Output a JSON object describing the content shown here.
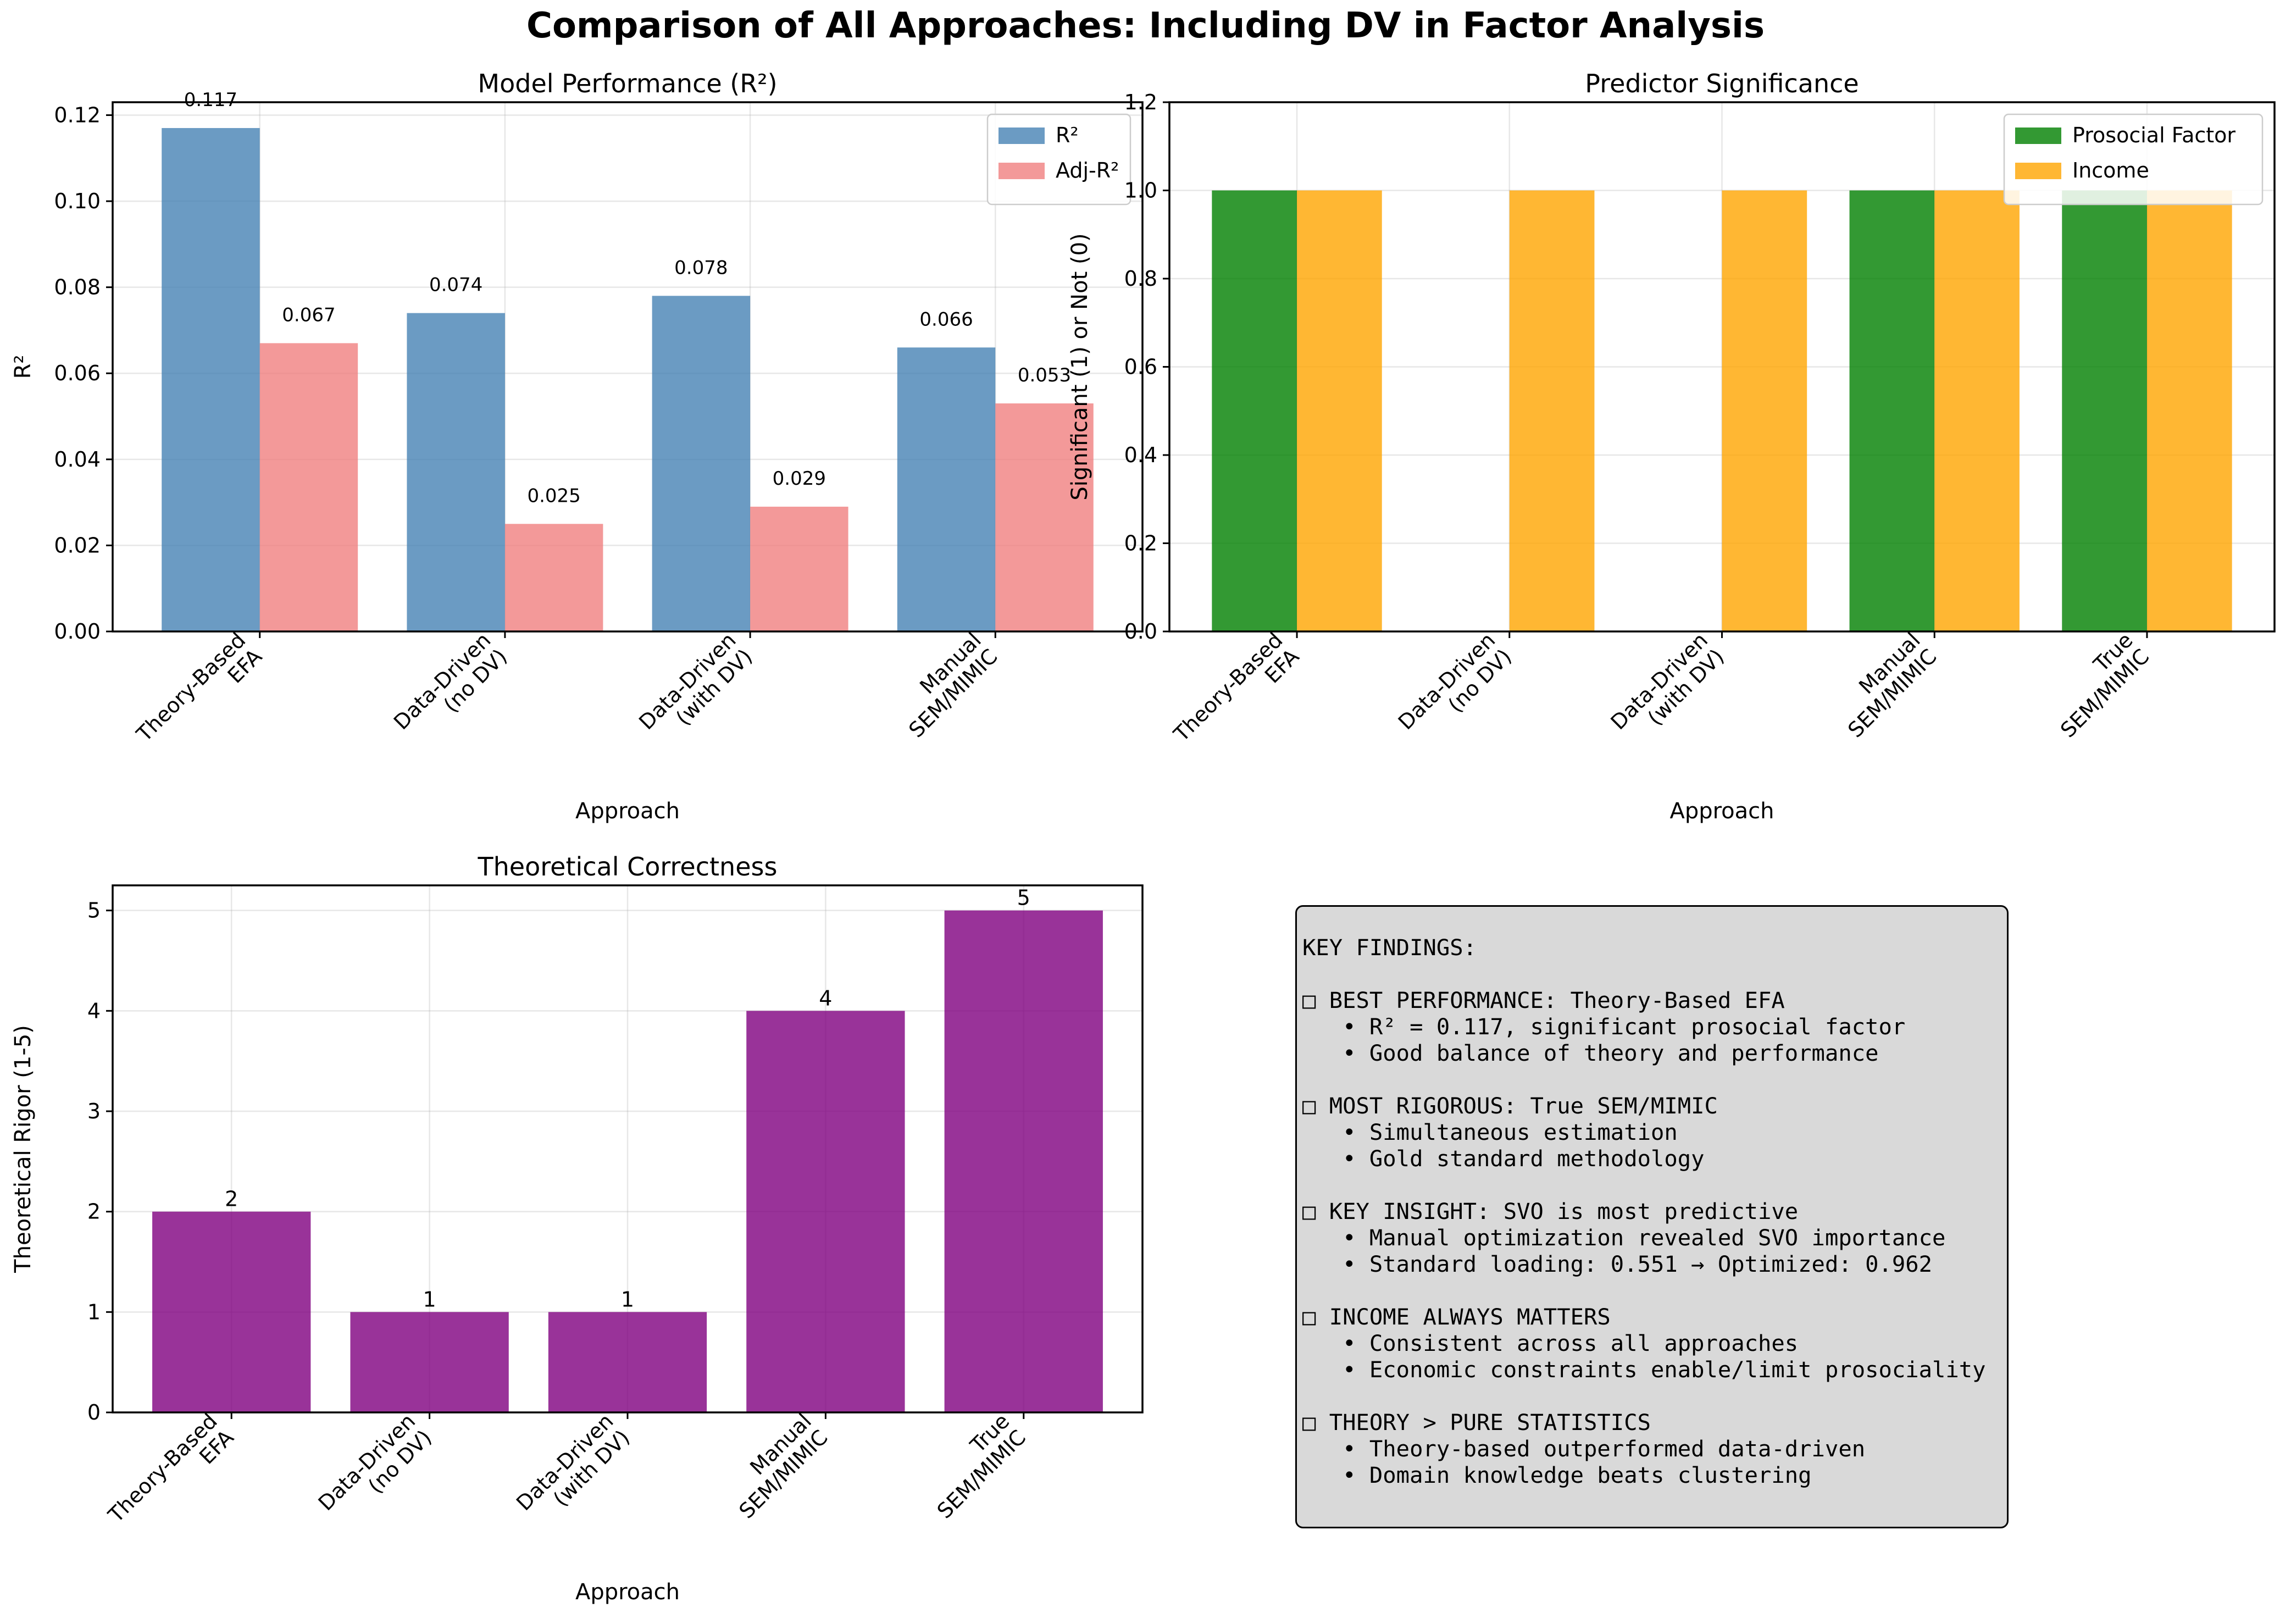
{
  "title": "Comparison of All Approaches: Including DV in Factor Analysis",
  "chart_data": [
    {
      "type": "bar",
      "title": "Model Performance (R²)",
      "xlabel": "Approach",
      "ylabel": "R²",
      "categories": [
        "Theory-Based\nEFA",
        "Data-Driven\n(no DV)",
        "Data-Driven\n(with DV)",
        "Manual\nSEM/MIMIC"
      ],
      "series": [
        {
          "name": "R²",
          "color": "#4682b4",
          "values": [
            0.117,
            0.074,
            0.078,
            0.066
          ],
          "labels": [
            "0.117",
            "0.074",
            "0.078",
            "0.066"
          ]
        },
        {
          "name": "Adj-R²",
          "color": "#f08080",
          "values": [
            0.067,
            0.025,
            0.029,
            0.053
          ],
          "labels": [
            "0.067",
            "0.025",
            "0.029",
            "0.053"
          ]
        }
      ],
      "ylim": [
        0,
        0.123
      ],
      "yticks": [
        0.0,
        0.02,
        0.04,
        0.06,
        0.08,
        0.1,
        0.12
      ],
      "ytick_labels": [
        "0.00",
        "0.02",
        "0.04",
        "0.06",
        "0.08",
        "0.10",
        "0.12"
      ],
      "legend": "top-right",
      "grid": true
    },
    {
      "type": "bar",
      "title": "Predictor Significance",
      "xlabel": "Approach",
      "ylabel": "Significant (1) or Not (0)",
      "categories": [
        "Theory-Based\nEFA",
        "Data-Driven\n(no DV)",
        "Data-Driven\n(with DV)",
        "Manual\nSEM/MIMIC",
        "True\nSEM/MIMIC"
      ],
      "series": [
        {
          "name": "Prosocial Factor",
          "color": "#008000",
          "values": [
            1,
            0,
            0,
            1,
            1
          ]
        },
        {
          "name": "Income",
          "color": "#ffa500",
          "values": [
            1,
            1,
            1,
            1,
            1
          ]
        }
      ],
      "ylim": [
        0,
        1.2
      ],
      "yticks": [
        0.0,
        0.2,
        0.4,
        0.6,
        0.8,
        1.0,
        1.2
      ],
      "ytick_labels": [
        "0.0",
        "0.2",
        "0.4",
        "0.6",
        "0.8",
        "1.0",
        "1.2"
      ],
      "legend": "top-right",
      "grid": true
    },
    {
      "type": "bar",
      "title": "Theoretical Correctness",
      "xlabel": "Approach",
      "ylabel": "Theoretical Rigor (1-5)",
      "categories": [
        "Theory-Based\nEFA",
        "Data-Driven\n(no DV)",
        "Data-Driven\n(with DV)",
        "Manual\nSEM/MIMIC",
        "True\nSEM/MIMIC"
      ],
      "series": [
        {
          "color": "#800080",
          "values": [
            2,
            1,
            1,
            4,
            5
          ],
          "labels": [
            "2",
            "1",
            "1",
            "4",
            "5"
          ]
        }
      ],
      "ylim": [
        0,
        5.25
      ],
      "yticks": [
        0,
        1,
        2,
        3,
        4,
        5
      ],
      "ytick_labels": [
        "0",
        "1",
        "2",
        "3",
        "4",
        "5"
      ],
      "grid": true
    }
  ],
  "findings": {
    "lines": [
      "KEY FINDINGS:",
      "",
      "□ BEST PERFORMANCE: Theory-Based EFA",
      "   • R² = 0.117, significant prosocial factor",
      "   • Good balance of theory and performance",
      "",
      "□ MOST RIGOROUS: True SEM/MIMIC",
      "   • Simultaneous estimation",
      "   • Gold standard methodology",
      "",
      "□ KEY INSIGHT: SVO is most predictive",
      "   • Manual optimization revealed SVO importance",
      "   • Standard loading: 0.551 → Optimized: 0.962",
      "",
      "□ INCOME ALWAYS MATTERS",
      "   • Consistent across all approaches",
      "   • Economic constraints enable/limit prosociality",
      "",
      "□ THEORY > PURE STATISTICS",
      "   • Theory-based outperformed data-driven",
      "   • Domain knowledge beats clustering"
    ]
  }
}
